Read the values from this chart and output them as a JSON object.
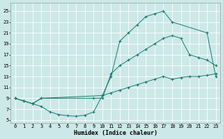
{
  "bg_color": "#cce8e8",
  "grid_color": "#ffffff",
  "line_color": "#1a7a6e",
  "line_width": 0.7,
  "marker": "+",
  "markersize": 3,
  "markerwidth": 0.8,
  "xlabel": "Humidex (Indice chaleur)",
  "xlabel_fontsize": 6,
  "tick_fontsize": 5,
  "xlim": [
    -0.5,
    23.5
  ],
  "ylim": [
    4.5,
    26.5
  ],
  "yticks": [
    5,
    7,
    9,
    11,
    13,
    15,
    17,
    19,
    21,
    23,
    25
  ],
  "xticks": [
    0,
    1,
    2,
    3,
    4,
    5,
    6,
    7,
    8,
    9,
    10,
    11,
    12,
    13,
    14,
    15,
    16,
    17,
    18,
    19,
    20,
    21,
    22,
    23
  ],
  "curve1_x": [
    0,
    1,
    2,
    3,
    10,
    11,
    12,
    13,
    14,
    15,
    16,
    17,
    18,
    22,
    23
  ],
  "curve1_y": [
    9,
    8.5,
    8,
    9,
    9.5,
    13,
    19.5,
    21,
    22.5,
    24,
    24.5,
    25,
    23,
    21,
    13
  ],
  "curve2_x": [
    0,
    1,
    2,
    3,
    9,
    10,
    11,
    12,
    13,
    14,
    15,
    16,
    17,
    18,
    19,
    20,
    21,
    22,
    23
  ],
  "curve2_y": [
    9,
    8.5,
    8,
    9,
    9,
    9,
    13.5,
    15,
    16,
    17,
    18,
    19,
    20,
    20.5,
    20,
    17,
    16.5,
    16,
    15
  ],
  "curve3_x": [
    0,
    1,
    2,
    3,
    4,
    5,
    6,
    7,
    8,
    9,
    10,
    11,
    12,
    13,
    14,
    15,
    16,
    17,
    18,
    19,
    20,
    21,
    22,
    23
  ],
  "curve3_y": [
    9,
    8.5,
    8,
    7.5,
    6.5,
    6.0,
    5.8,
    5.7,
    5.9,
    6.5,
    9.5,
    10,
    10.5,
    11,
    11.5,
    12,
    12.5,
    13,
    12.5,
    12.8,
    13,
    13,
    13.2,
    13.5
  ]
}
